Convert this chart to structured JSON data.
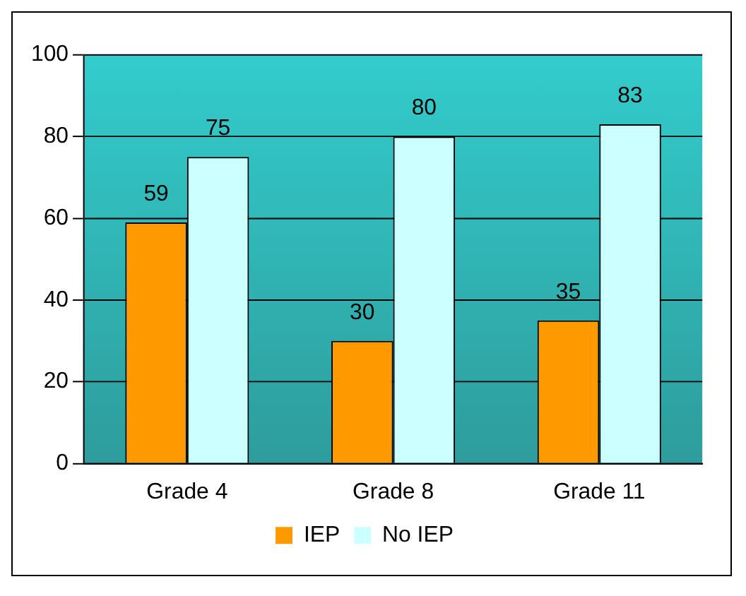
{
  "chart_data": {
    "type": "bar",
    "categories": [
      "Grade 4",
      "Grade 8",
      "Grade 11"
    ],
    "series": [
      {
        "name": "IEP",
        "color": "#ff9900",
        "values": [
          59,
          30,
          35
        ]
      },
      {
        "name": "No IEP",
        "color": "#ccffff",
        "values": [
          75,
          80,
          83
        ]
      }
    ],
    "ylim": [
      0,
      100
    ],
    "yticks": [
      0,
      20,
      40,
      60,
      80,
      100
    ],
    "grid": "y",
    "legend": "bottom",
    "data_labels": true
  }
}
